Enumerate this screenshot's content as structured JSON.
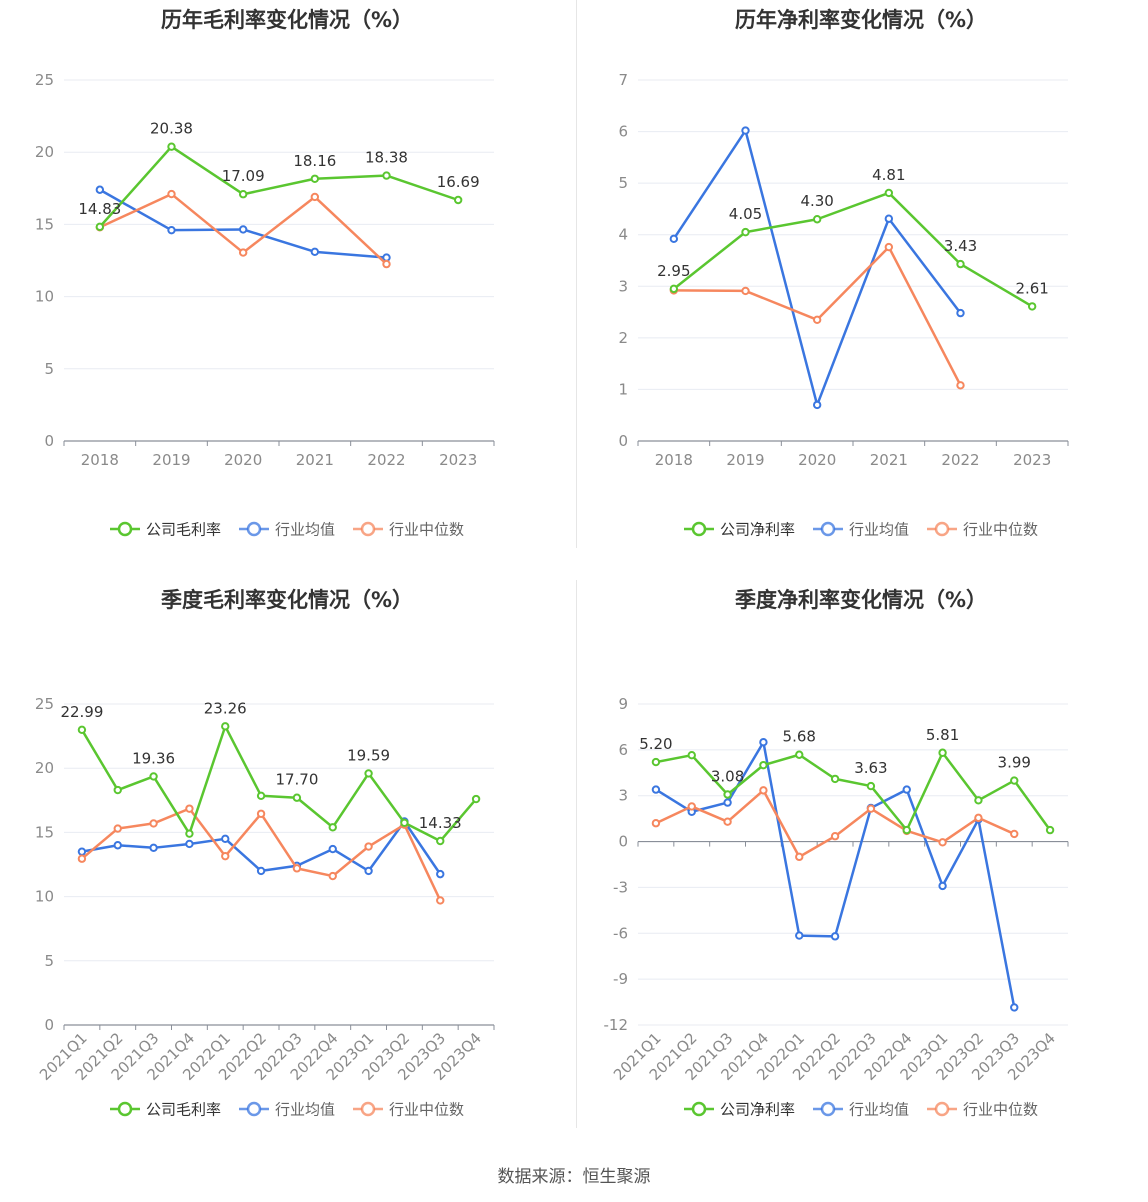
{
  "source": "数据来源：恒生聚源",
  "colors": {
    "company": "#5ac630",
    "average": "#3a76e0",
    "median": "#f6875e"
  },
  "chart_data": [
    {
      "type": "line",
      "title": "历年毛利率变化情况（%）",
      "categories": [
        "2018",
        "2019",
        "2020",
        "2021",
        "2022",
        "2023"
      ],
      "ylim": [
        0,
        25
      ],
      "yticks": [
        0,
        5,
        10,
        15,
        20,
        25
      ],
      "legend_position": "bottom",
      "series": [
        {
          "name": "公司毛利率",
          "key": "company",
          "values": [
            14.83,
            20.38,
            17.09,
            18.16,
            18.38,
            16.69
          ],
          "labels": [
            "14.83",
            "20.38",
            "17.09",
            "18.16",
            "18.38",
            "16.69"
          ]
        },
        {
          "name": "行业均值",
          "key": "average",
          "values": [
            17.4,
            14.6,
            14.65,
            13.1,
            12.7,
            null
          ]
        },
        {
          "name": "行业中位数",
          "key": "median",
          "values": [
            14.8,
            17.1,
            13.05,
            16.9,
            12.25,
            null
          ]
        }
      ]
    },
    {
      "type": "line",
      "title": "历年净利率变化情况（%）",
      "categories": [
        "2018",
        "2019",
        "2020",
        "2021",
        "2022",
        "2023"
      ],
      "ylim": [
        0,
        7
      ],
      "yticks": [
        0,
        1,
        2,
        3,
        4,
        5,
        6,
        7
      ],
      "legend_position": "bottom",
      "series": [
        {
          "name": "公司净利率",
          "key": "company",
          "values": [
            2.95,
            4.05,
            4.3,
            4.81,
            3.43,
            2.61
          ],
          "labels": [
            "2.95",
            "4.05",
            "4.30",
            "4.81",
            "3.43",
            "2.61"
          ]
        },
        {
          "name": "行业均值",
          "key": "average",
          "values": [
            3.92,
            6.02,
            0.7,
            4.31,
            2.48,
            null
          ]
        },
        {
          "name": "行业中位数",
          "key": "median",
          "values": [
            2.92,
            2.91,
            2.35,
            3.76,
            1.08,
            null
          ]
        }
      ]
    },
    {
      "type": "line",
      "title": "季度毛利率变化情况（%）",
      "categories": [
        "2021Q1",
        "2021Q2",
        "2021Q3",
        "2021Q4",
        "2022Q1",
        "2022Q2",
        "2022Q3",
        "2022Q4",
        "2023Q1",
        "2023Q2",
        "2023Q3",
        "2023Q4"
      ],
      "ylim": [
        0,
        25
      ],
      "yticks": [
        0,
        5,
        10,
        15,
        20,
        25
      ],
      "rotate_xticks": true,
      "legend_position": "bottom",
      "series": [
        {
          "name": "公司毛利率",
          "key": "company",
          "values": [
            22.99,
            18.3,
            19.36,
            14.9,
            23.26,
            17.85,
            17.7,
            15.4,
            19.59,
            15.75,
            14.33,
            17.6
          ],
          "labels": [
            "22.99",
            "",
            "19.36",
            "",
            "23.26",
            "",
            "17.70",
            "",
            "19.59",
            "",
            "14.33",
            ""
          ]
        },
        {
          "name": "行业均值",
          "key": "average",
          "values": [
            13.5,
            14.0,
            13.8,
            14.1,
            14.5,
            12.0,
            12.4,
            13.7,
            12.0,
            15.85,
            11.75,
            null
          ]
        },
        {
          "name": "行业中位数",
          "key": "median",
          "values": [
            12.95,
            15.3,
            15.7,
            16.85,
            13.15,
            16.45,
            12.2,
            11.6,
            13.9,
            15.6,
            9.7,
            null
          ]
        }
      ]
    },
    {
      "type": "line",
      "title": "季度净利率变化情况（%）",
      "categories": [
        "2021Q1",
        "2021Q2",
        "2021Q3",
        "2021Q4",
        "2022Q1",
        "2022Q2",
        "2022Q3",
        "2022Q4",
        "2023Q1",
        "2023Q2",
        "2023Q3",
        "2023Q4"
      ],
      "ylim": [
        -12,
        9
      ],
      "yticks": [
        -12,
        -9,
        -6,
        -3,
        0,
        3,
        6,
        9
      ],
      "rotate_xticks": true,
      "legend_position": "bottom",
      "series": [
        {
          "name": "公司净利率",
          "key": "company",
          "values": [
            5.2,
            5.65,
            3.08,
            5.0,
            5.68,
            4.1,
            3.63,
            0.75,
            5.81,
            2.7,
            3.99,
            0.75
          ],
          "labels": [
            "5.20",
            "",
            "3.08",
            "",
            "5.68",
            "",
            "3.63",
            "",
            "5.81",
            "",
            "3.99",
            ""
          ]
        },
        {
          "name": "行业均值",
          "key": "average",
          "values": [
            3.4,
            1.95,
            2.55,
            6.5,
            -6.15,
            -6.2,
            2.2,
            3.4,
            -2.9,
            1.45,
            -10.85,
            null
          ]
        },
        {
          "name": "行业中位数",
          "key": "median",
          "values": [
            1.2,
            2.3,
            1.3,
            3.35,
            -1.0,
            0.35,
            2.15,
            0.7,
            -0.05,
            1.55,
            0.5,
            null
          ]
        }
      ]
    }
  ]
}
